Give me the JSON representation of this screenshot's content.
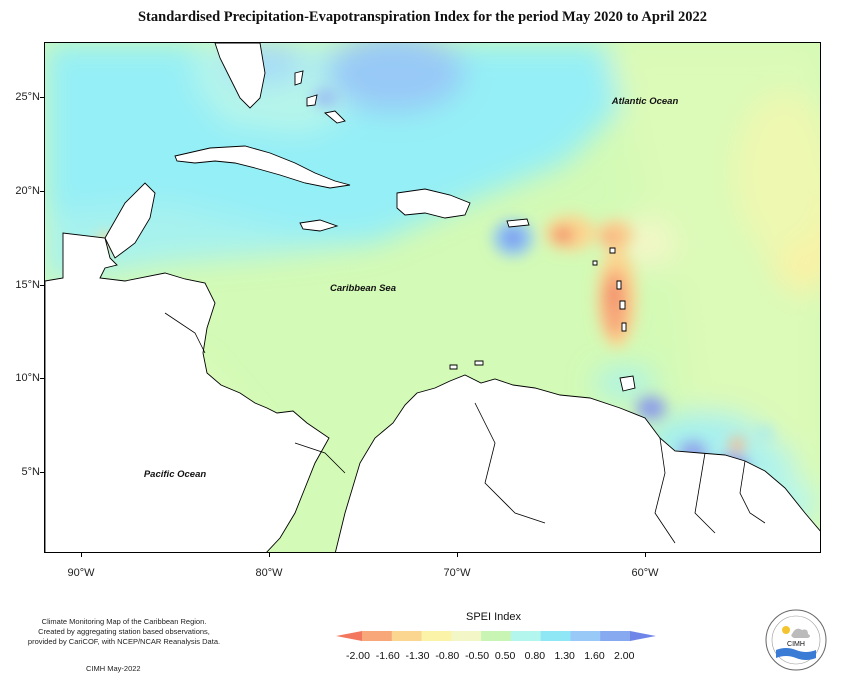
{
  "title": "Standardised Precipitation-Evapotranspiration Index for the period May 2020 to April 2022",
  "map": {
    "labels": {
      "atlantic": "Atlantic Ocean",
      "caribbean": "Caribbean Sea",
      "pacific": "Pacific Ocean"
    },
    "lat_ticks": [
      "25°N",
      "20°N",
      "15°N",
      "10°N",
      "5°N"
    ],
    "lon_ticks": [
      "90°W",
      "80°W",
      "70°W",
      "60°W"
    ]
  },
  "legend": {
    "title": "SPEI Index",
    "labels": [
      "-2.00",
      "-1.60",
      "-1.30",
      "-0.80",
      "-0.50",
      "0.50",
      "0.80",
      "1.30",
      "1.60",
      "2.00"
    ],
    "colors": [
      "#f2775e",
      "#f7a77a",
      "#fbd690",
      "#fbf4a8",
      "#f3f7c7",
      "#c8f5b4",
      "#b3f6ee",
      "#8fe6f5",
      "#98c9f7",
      "#86a9f0",
      "#6f86e8"
    ]
  },
  "notes": {
    "line1": "Climate Monitoring Map of the Caribbean Region.",
    "line2": "Created by aggregating station based observations,",
    "line3": "provided by CariCOF, with NCEP/NCAR Reanalysis Data.",
    "credit": "CIMH May-2022"
  },
  "logo": {
    "text": "CIMH"
  }
}
